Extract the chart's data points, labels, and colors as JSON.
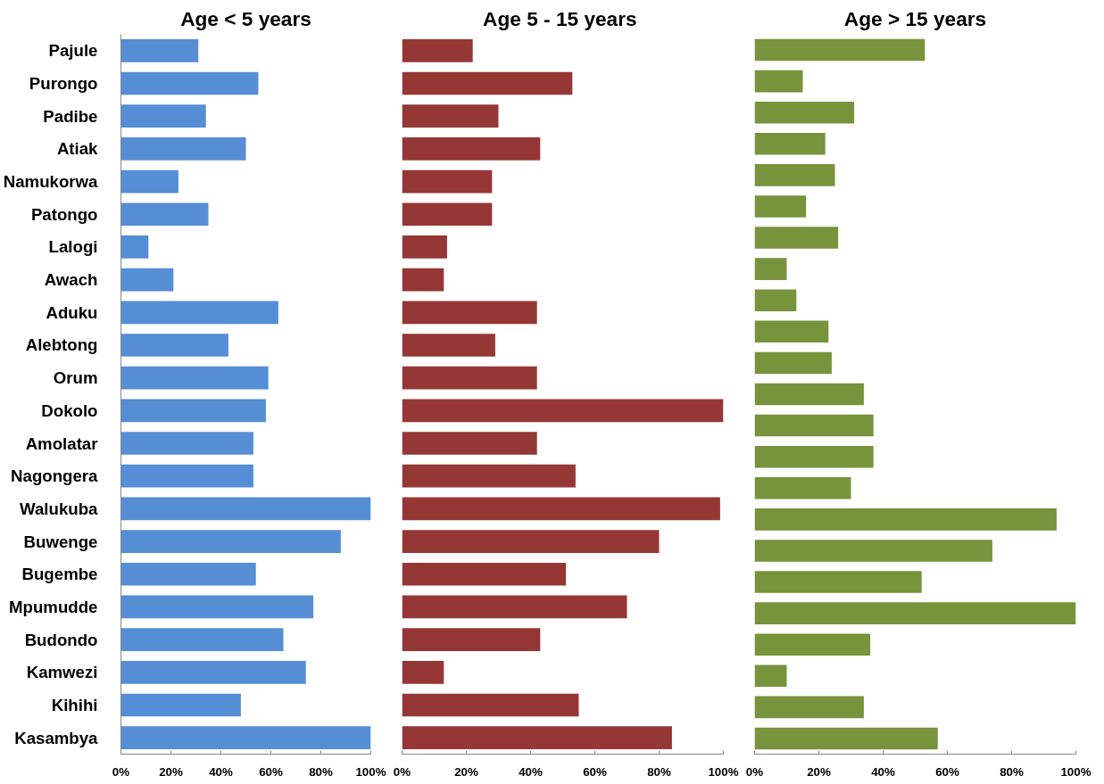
{
  "chart_data": [
    {
      "type": "bar",
      "orientation": "horizontal",
      "title": "Age < 5 years",
      "categories": [
        "Pajule",
        "Purongo",
        "Padibe",
        "Atiak",
        "Namukorwa",
        "Patongo",
        "Lalogi",
        "Awach",
        "Aduku",
        "Alebtong",
        "Orum",
        "Dokolo",
        "Amolatar",
        "Nagongera",
        "Walukuba",
        "Buwenge",
        "Bugembe",
        "Mpumudde",
        "Budondo",
        "Kamwezi",
        "Kihihi",
        "Kasambya"
      ],
      "values": [
        31,
        55,
        34,
        50,
        23,
        35,
        11,
        21,
        63,
        43,
        59,
        58,
        53,
        53,
        100,
        88,
        54,
        77,
        65,
        74,
        48,
        100
      ],
      "color": "#558ed5",
      "xlim": [
        0,
        100
      ],
      "xticks": [
        {
          "value": 0,
          "label": "0%"
        },
        {
          "value": 20,
          "label": "20%"
        },
        {
          "value": 40,
          "label": "40%"
        },
        {
          "value": 60,
          "label": "60%"
        },
        {
          "value": 80,
          "label": "80%"
        },
        {
          "value": 100,
          "label": "100%"
        }
      ],
      "grid": false
    },
    {
      "type": "bar",
      "orientation": "horizontal",
      "title": "Age 5  - 15 years",
      "categories": [
        null,
        null,
        null,
        null,
        null,
        null,
        null,
        null,
        null,
        null,
        null,
        null,
        null,
        null,
        null,
        null,
        null,
        null,
        null,
        null,
        null,
        null
      ],
      "values": [
        22,
        53,
        30,
        43,
        28,
        28,
        14,
        13,
        42,
        29,
        42,
        100,
        42,
        54,
        99,
        80,
        51,
        70,
        43,
        13,
        55,
        84
      ],
      "color": "#953735",
      "xlim": [
        0,
        100
      ],
      "xticks": [
        {
          "value": 0,
          "label": "0%"
        },
        {
          "value": 20,
          "label": "20%"
        },
        {
          "value": 40,
          "label": "40%"
        },
        {
          "value": 60,
          "label": "60%"
        },
        {
          "value": 80,
          "label": "80%"
        },
        {
          "value": 100,
          "label": "100%"
        }
      ],
      "tick_labels": "x",
      "grid": false
    },
    {
      "type": "bar",
      "orientation": "horizontal",
      "title": "Age > 15 years",
      "categories": [
        null,
        null,
        null,
        null,
        null,
        null,
        null,
        null,
        null,
        null,
        null,
        null,
        null,
        null,
        null,
        null,
        null,
        null,
        null,
        null,
        null,
        null,
        null
      ],
      "values": [
        53,
        15,
        31,
        22,
        25,
        16,
        26,
        10,
        13,
        23,
        24,
        34,
        37,
        37,
        30,
        94,
        74,
        52,
        100,
        36,
        10,
        34,
        57
      ],
      "color": "#77933c",
      "xlim": [
        0,
        100
      ],
      "xticks": [
        {
          "value": 0,
          "label": "0%"
        },
        {
          "value": 20,
          "label": "20%"
        },
        {
          "value": 40,
          "label": "40%"
        },
        {
          "value": 60,
          "label": "60%"
        },
        {
          "value": 80,
          "label": "80%"
        },
        {
          "value": 100,
          "label": "100%"
        }
      ],
      "tick_labels": "x",
      "grid": false
    }
  ]
}
